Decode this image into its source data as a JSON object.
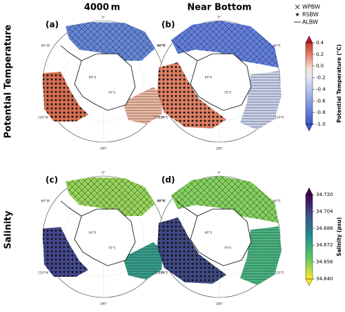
{
  "columns": [
    "4000 m",
    "Near Bottom"
  ],
  "rows": [
    "Potential Temperature",
    "Salinity"
  ],
  "panel_labels": [
    "(a)",
    "(b)",
    "(c)",
    "(d)"
  ],
  "graticule": [
    "0°",
    "60°E",
    "120°E",
    "180°",
    "120°W",
    "60°W",
    "60°S",
    "70°S"
  ],
  "legend": [
    "WPBW",
    "RSBW",
    "ALBW"
  ],
  "colorbars": [
    {
      "label": "Potential Temperature (°C)",
      "lim": [
        -1.0,
        0.4
      ],
      "ticks": [
        0.4,
        0.2,
        {
          "value": 0.0,
          "label": "0.0"
        },
        -0.2,
        -0.4,
        -0.6,
        -0.8,
        {
          "value": -1.0,
          "label": "-1.0"
        }
      ]
    },
    {
      "label": "Salinity (psu)",
      "lim": [
        34.64,
        34.72
      ],
      "ticks": [
        {
          "value": 34.72,
          "label": "34.720"
        },
        34.704,
        34.688,
        34.672,
        34.656,
        {
          "value": 34.64,
          "label": "34.640"
        }
      ]
    }
  ]
}
